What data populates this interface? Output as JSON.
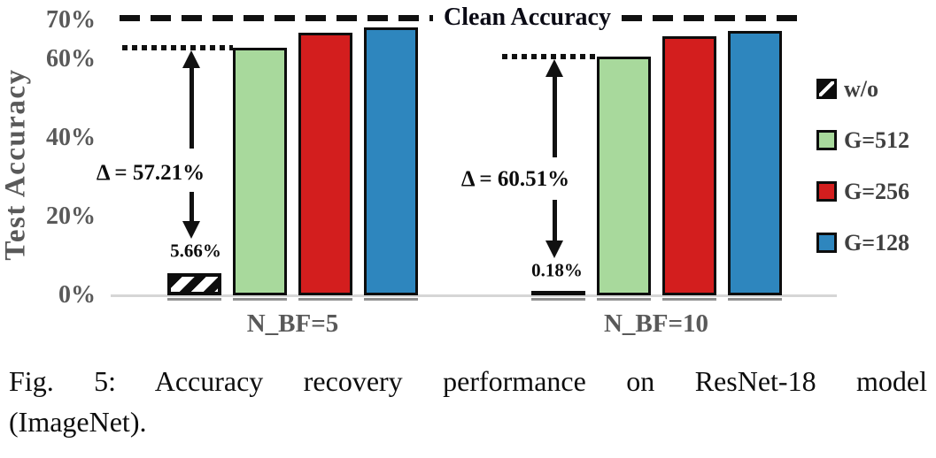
{
  "figure": {
    "caption_line1": "Fig. 5: Accuracy recovery performance on ResNet-18 model",
    "caption_line2": "(ImageNet)."
  },
  "colors": {
    "axis_text": "#595959",
    "annotation_text": "#0d0d0d",
    "baseline": "#d6d6d6",
    "green": "#a8d99c",
    "red": "#d31e1e",
    "blue": "#2e86be"
  },
  "chart_data": {
    "type": "bar",
    "title": "",
    "ylabel": "Test Accuracy",
    "xlabel": "",
    "ylim": [
      0,
      75
    ],
    "grid": false,
    "yticks": [
      {
        "value": 0,
        "label": "0%"
      },
      {
        "value": 20,
        "label": "20%"
      },
      {
        "value": 40,
        "label": "40%"
      },
      {
        "value": 60,
        "label": "60%"
      },
      {
        "value": 70,
        "label": "70%"
      }
    ],
    "categories": [
      "N_BF=5",
      "N_BF=10"
    ],
    "series": [
      {
        "name": "w/o",
        "pattern": "hatched",
        "color": "#0d0d0d",
        "values": [
          5.66,
          0.18
        ]
      },
      {
        "name": "G=512",
        "pattern": "solid",
        "color": "#a8d99c",
        "values": [
          62.87,
          60.69
        ]
      },
      {
        "name": "G=256",
        "pattern": "solid",
        "color": "#d31e1e",
        "values": [
          66.8,
          65.9
        ]
      },
      {
        "name": "G=128",
        "pattern": "solid",
        "color": "#2e86be",
        "values": [
          68.2,
          67.3
        ]
      }
    ],
    "reference_line": {
      "label": "Clean Accuracy",
      "value": 70,
      "style": "dashed"
    },
    "annotations": [
      {
        "category": "N_BF=5",
        "delta_label": "Δ = 57.21%",
        "bar_value_label": "5.66%",
        "dotted_line_value": 62.87
      },
      {
        "category": "N_BF=10",
        "delta_label": "Δ = 60.51%",
        "bar_value_label": "0.18%",
        "dotted_line_value": 60.69
      }
    ],
    "legend": {
      "position": "right",
      "items": [
        {
          "label": "w/o",
          "swatch": "hatched"
        },
        {
          "label": "G=512",
          "swatch": "#a8d99c"
        },
        {
          "label": "G=256",
          "swatch": "#d31e1e"
        },
        {
          "label": "G=128",
          "swatch": "#2e86be"
        }
      ]
    }
  }
}
